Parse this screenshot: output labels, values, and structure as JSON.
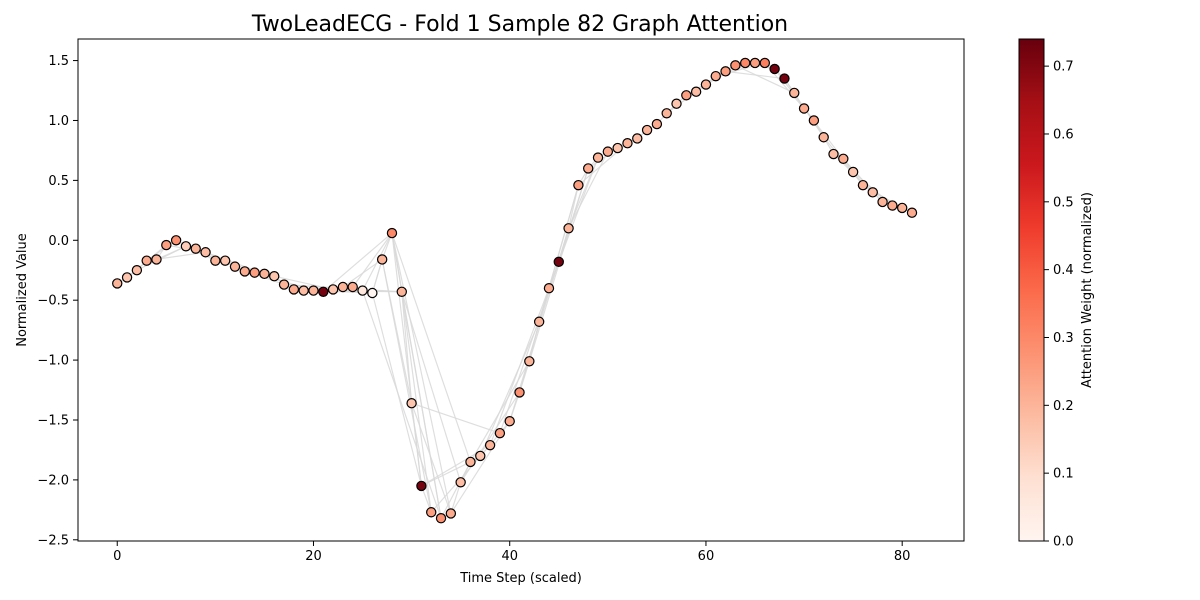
{
  "chart_data": {
    "type": "scatter",
    "title": "TwoLeadECG - Fold 1 Sample 82 Graph Attention",
    "xlabel": "Time Step (scaled)",
    "ylabel": "Normalized Value",
    "xlim": [
      -4,
      86.3
    ],
    "ylim": [
      -2.51,
      1.68
    ],
    "xticks": [
      0,
      20,
      40,
      60,
      80
    ],
    "yticks": [
      1.5,
      1.0,
      0.5,
      0.0,
      -0.5,
      -1.0,
      -1.5,
      -2.0,
      -2.5
    ],
    "xtick_labels": [
      "0",
      "20",
      "40",
      "60",
      "80"
    ],
    "ytick_labels": [
      "1.5",
      "1.0",
      "0.5",
      "0.0",
      "−0.5",
      "−1.0",
      "−1.5",
      "−2.0",
      "−2.5"
    ],
    "colorbar": {
      "label": "Attention Weight (normalized)",
      "min": 0.0,
      "max": 0.74,
      "ticks": [
        0.0,
        0.1,
        0.2,
        0.3,
        0.4,
        0.5,
        0.6,
        0.7
      ],
      "tick_labels": [
        "0.0",
        "0.1",
        "0.2",
        "0.3",
        "0.4",
        "0.5",
        "0.6",
        "0.7"
      ],
      "colormap": "Reds"
    },
    "points": [
      {
        "x": 0,
        "y": -0.36,
        "w": 0.2
      },
      {
        "x": 1,
        "y": -0.31,
        "w": 0.16
      },
      {
        "x": 2,
        "y": -0.25,
        "w": 0.18
      },
      {
        "x": 3,
        "y": -0.17,
        "w": 0.22
      },
      {
        "x": 4,
        "y": -0.16,
        "w": 0.2
      },
      {
        "x": 5,
        "y": -0.04,
        "w": 0.25
      },
      {
        "x": 6,
        "y": 0.0,
        "w": 0.28
      },
      {
        "x": 7,
        "y": -0.05,
        "w": 0.14
      },
      {
        "x": 8,
        "y": -0.07,
        "w": 0.2
      },
      {
        "x": 9,
        "y": -0.1,
        "w": 0.18
      },
      {
        "x": 10,
        "y": -0.17,
        "w": 0.2
      },
      {
        "x": 11,
        "y": -0.17,
        "w": 0.16
      },
      {
        "x": 12,
        "y": -0.22,
        "w": 0.2
      },
      {
        "x": 13,
        "y": -0.26,
        "w": 0.22
      },
      {
        "x": 14,
        "y": -0.27,
        "w": 0.25
      },
      {
        "x": 15,
        "y": -0.28,
        "w": 0.2
      },
      {
        "x": 16,
        "y": -0.3,
        "w": 0.16
      },
      {
        "x": 17,
        "y": -0.37,
        "w": 0.2
      },
      {
        "x": 18,
        "y": -0.41,
        "w": 0.22
      },
      {
        "x": 19,
        "y": -0.42,
        "w": 0.18
      },
      {
        "x": 20,
        "y": -0.42,
        "w": 0.2
      },
      {
        "x": 21,
        "y": -0.43,
        "w": 0.72
      },
      {
        "x": 22,
        "y": -0.41,
        "w": 0.16
      },
      {
        "x": 23,
        "y": -0.39,
        "w": 0.2
      },
      {
        "x": 24,
        "y": -0.39,
        "w": 0.22
      },
      {
        "x": 25,
        "y": -0.42,
        "w": 0.06
      },
      {
        "x": 26,
        "y": -0.44,
        "w": 0.0
      },
      {
        "x": 27,
        "y": -0.16,
        "w": 0.2
      },
      {
        "x": 28,
        "y": 0.06,
        "w": 0.3
      },
      {
        "x": 29,
        "y": -0.43,
        "w": 0.2
      },
      {
        "x": 30,
        "y": -1.36,
        "w": 0.16
      },
      {
        "x": 31,
        "y": -2.05,
        "w": 0.72
      },
      {
        "x": 32,
        "y": -2.27,
        "w": 0.25
      },
      {
        "x": 33,
        "y": -2.32,
        "w": 0.28
      },
      {
        "x": 34,
        "y": -2.28,
        "w": 0.22
      },
      {
        "x": 35,
        "y": -2.02,
        "w": 0.18
      },
      {
        "x": 36,
        "y": -1.85,
        "w": 0.2
      },
      {
        "x": 37,
        "y": -1.8,
        "w": 0.16
      },
      {
        "x": 38,
        "y": -1.71,
        "w": 0.2
      },
      {
        "x": 39,
        "y": -1.61,
        "w": 0.25
      },
      {
        "x": 40,
        "y": -1.51,
        "w": 0.22
      },
      {
        "x": 41,
        "y": -1.27,
        "w": 0.28
      },
      {
        "x": 42,
        "y": -1.01,
        "w": 0.2
      },
      {
        "x": 43,
        "y": -0.68,
        "w": 0.2
      },
      {
        "x": 44,
        "y": -0.4,
        "w": 0.22
      },
      {
        "x": 45,
        "y": -0.18,
        "w": 0.72
      },
      {
        "x": 46,
        "y": 0.1,
        "w": 0.2
      },
      {
        "x": 47,
        "y": 0.46,
        "w": 0.25
      },
      {
        "x": 48,
        "y": 0.6,
        "w": 0.22
      },
      {
        "x": 49,
        "y": 0.69,
        "w": 0.2
      },
      {
        "x": 50,
        "y": 0.74,
        "w": 0.22
      },
      {
        "x": 51,
        "y": 0.77,
        "w": 0.16
      },
      {
        "x": 52,
        "y": 0.81,
        "w": 0.2
      },
      {
        "x": 53,
        "y": 0.85,
        "w": 0.18
      },
      {
        "x": 54,
        "y": 0.92,
        "w": 0.2
      },
      {
        "x": 55,
        "y": 0.97,
        "w": 0.22
      },
      {
        "x": 56,
        "y": 1.06,
        "w": 0.2
      },
      {
        "x": 57,
        "y": 1.14,
        "w": 0.16
      },
      {
        "x": 58,
        "y": 1.21,
        "w": 0.25
      },
      {
        "x": 59,
        "y": 1.24,
        "w": 0.18
      },
      {
        "x": 60,
        "y": 1.3,
        "w": 0.2
      },
      {
        "x": 61,
        "y": 1.37,
        "w": 0.22
      },
      {
        "x": 62,
        "y": 1.41,
        "w": 0.25
      },
      {
        "x": 63,
        "y": 1.46,
        "w": 0.28
      },
      {
        "x": 64,
        "y": 1.48,
        "w": 0.3
      },
      {
        "x": 65,
        "y": 1.48,
        "w": 0.25
      },
      {
        "x": 66,
        "y": 1.48,
        "w": 0.32
      },
      {
        "x": 67,
        "y": 1.43,
        "w": 0.72
      },
      {
        "x": 68,
        "y": 1.35,
        "w": 0.72
      },
      {
        "x": 69,
        "y": 1.23,
        "w": 0.2
      },
      {
        "x": 70,
        "y": 1.1,
        "w": 0.22
      },
      {
        "x": 71,
        "y": 1.0,
        "w": 0.25
      },
      {
        "x": 72,
        "y": 0.86,
        "w": 0.2
      },
      {
        "x": 73,
        "y": 0.72,
        "w": 0.18
      },
      {
        "x": 74,
        "y": 0.68,
        "w": 0.22
      },
      {
        "x": 75,
        "y": 0.57,
        "w": 0.16
      },
      {
        "x": 76,
        "y": 0.46,
        "w": 0.2
      },
      {
        "x": 77,
        "y": 0.4,
        "w": 0.18
      },
      {
        "x": 78,
        "y": 0.32,
        "w": 0.2
      },
      {
        "x": 79,
        "y": 0.29,
        "w": 0.22
      },
      {
        "x": 80,
        "y": 0.27,
        "w": 0.2
      },
      {
        "x": 81,
        "y": 0.23,
        "w": 0.22
      }
    ],
    "edges": [
      [
        3,
        6
      ],
      [
        4,
        7
      ],
      [
        3,
        9
      ],
      [
        1,
        5
      ],
      [
        2,
        7
      ],
      [
        5,
        9
      ],
      [
        6,
        10
      ],
      [
        7,
        12
      ],
      [
        8,
        14
      ],
      [
        9,
        15
      ],
      [
        12,
        17
      ],
      [
        14,
        20
      ],
      [
        16,
        22
      ],
      [
        18,
        24
      ],
      [
        20,
        26
      ],
      [
        22,
        29
      ],
      [
        23,
        27
      ],
      [
        24,
        28
      ],
      [
        25,
        28
      ],
      [
        26,
        27
      ],
      [
        21,
        28
      ],
      [
        19,
        29
      ],
      [
        17,
        29
      ],
      [
        22,
        26
      ],
      [
        27,
        30
      ],
      [
        28,
        31
      ],
      [
        28,
        33
      ],
      [
        28,
        34
      ],
      [
        29,
        32
      ],
      [
        29,
        33
      ],
      [
        29,
        35
      ],
      [
        28,
        36
      ],
      [
        27,
        32
      ],
      [
        26,
        31
      ],
      [
        25,
        33
      ],
      [
        30,
        34
      ],
      [
        31,
        36
      ],
      [
        31,
        38
      ],
      [
        32,
        38
      ],
      [
        33,
        36
      ],
      [
        30,
        39
      ],
      [
        34,
        40
      ],
      [
        35,
        41
      ],
      [
        36,
        42
      ],
      [
        37,
        43
      ],
      [
        38,
        44
      ],
      [
        39,
        45
      ],
      [
        40,
        46
      ],
      [
        41,
        47
      ],
      [
        42,
        48
      ],
      [
        43,
        47
      ],
      [
        44,
        49
      ],
      [
        45,
        48
      ],
      [
        46,
        50
      ],
      [
        47,
        52
      ],
      [
        48,
        51
      ],
      [
        46,
        49
      ],
      [
        56,
        60
      ],
      [
        58,
        63
      ],
      [
        60,
        64
      ],
      [
        61,
        66
      ],
      [
        62,
        68
      ],
      [
        63,
        69
      ],
      [
        64,
        67
      ],
      [
        66,
        70
      ],
      [
        67,
        71
      ],
      [
        68,
        72
      ],
      [
        70,
        74
      ],
      [
        72,
        76
      ],
      [
        73,
        77
      ],
      [
        74,
        78
      ],
      [
        75,
        79
      ],
      [
        76,
        80
      ],
      [
        77,
        81
      ],
      [
        78,
        80
      ]
    ]
  }
}
